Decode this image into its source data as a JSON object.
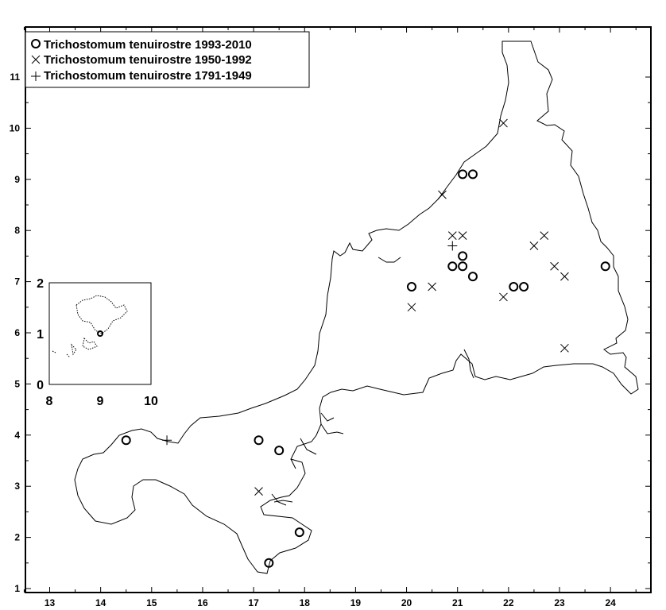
{
  "legend": {
    "entries": [
      {
        "symbol": "circle",
        "label": "Trichostomum tenuirostre 1993-2010"
      },
      {
        "symbol": "x",
        "label": "Trichostomum tenuirostre 1950-1992"
      },
      {
        "symbol": "plus",
        "label": "Trichostomum tenuirostre 1791-1949"
      }
    ]
  },
  "chart_data": {
    "type": "scatter",
    "xlim": [
      12.5,
      24.5
    ],
    "ylim": [
      0.9,
      11.5
    ],
    "x_ticks": [
      "13",
      "14",
      "15",
      "16",
      "17",
      "18",
      "19",
      "20",
      "21",
      "22",
      "23",
      "24"
    ],
    "y_ticks": [
      "1",
      "2",
      "3",
      "4",
      "5",
      "6",
      "7",
      "8",
      "9",
      "10",
      "11"
    ],
    "grid": false,
    "legend_position": "top-left",
    "series": [
      {
        "name": "Trichostomum tenuirostre 1993-2010",
        "marker": "circle",
        "points": [
          [
            14.5,
            3.9
          ],
          [
            17.1,
            3.9
          ],
          [
            17.5,
            3.7
          ],
          [
            17.9,
            2.1
          ],
          [
            17.3,
            1.5
          ],
          [
            20.1,
            6.9
          ],
          [
            20.9,
            7.3
          ],
          [
            21.1,
            7.3
          ],
          [
            21.1,
            7.5
          ],
          [
            21.3,
            7.1
          ],
          [
            21.1,
            9.1
          ],
          [
            21.3,
            9.1
          ],
          [
            22.1,
            6.9
          ],
          [
            22.3,
            6.9
          ],
          [
            23.9,
            7.3
          ]
        ]
      },
      {
        "name": "Trichostomum tenuirostre 1950-1992",
        "marker": "x",
        "points": [
          [
            17.1,
            2.9
          ],
          [
            20.1,
            6.5
          ],
          [
            20.5,
            6.9
          ],
          [
            20.7,
            8.7
          ],
          [
            20.9,
            7.9
          ],
          [
            21.1,
            7.9
          ],
          [
            21.9,
            10.1
          ],
          [
            21.9,
            6.7
          ],
          [
            22.5,
            7.7
          ],
          [
            22.7,
            7.9
          ],
          [
            22.9,
            7.3
          ],
          [
            23.1,
            7.1
          ],
          [
            23.1,
            5.7
          ]
        ]
      },
      {
        "name": "Trichostomum tenuirostre 1791-1949",
        "marker": "plus",
        "points": [
          [
            15.3,
            3.9
          ],
          [
            20.9,
            7.7
          ]
        ]
      }
    ],
    "inset": {
      "x_ticks": [
        "8",
        "9",
        "10"
      ],
      "y_ticks": [
        "0",
        "1",
        "2"
      ],
      "xlim": [
        8,
        10
      ],
      "ylim": [
        0,
        2
      ],
      "series": [
        {
          "name": "Trichostomum tenuirostre 1993-2010",
          "marker": "circle",
          "points": [
            [
              9.0,
              1.0
            ]
          ]
        }
      ]
    }
  }
}
